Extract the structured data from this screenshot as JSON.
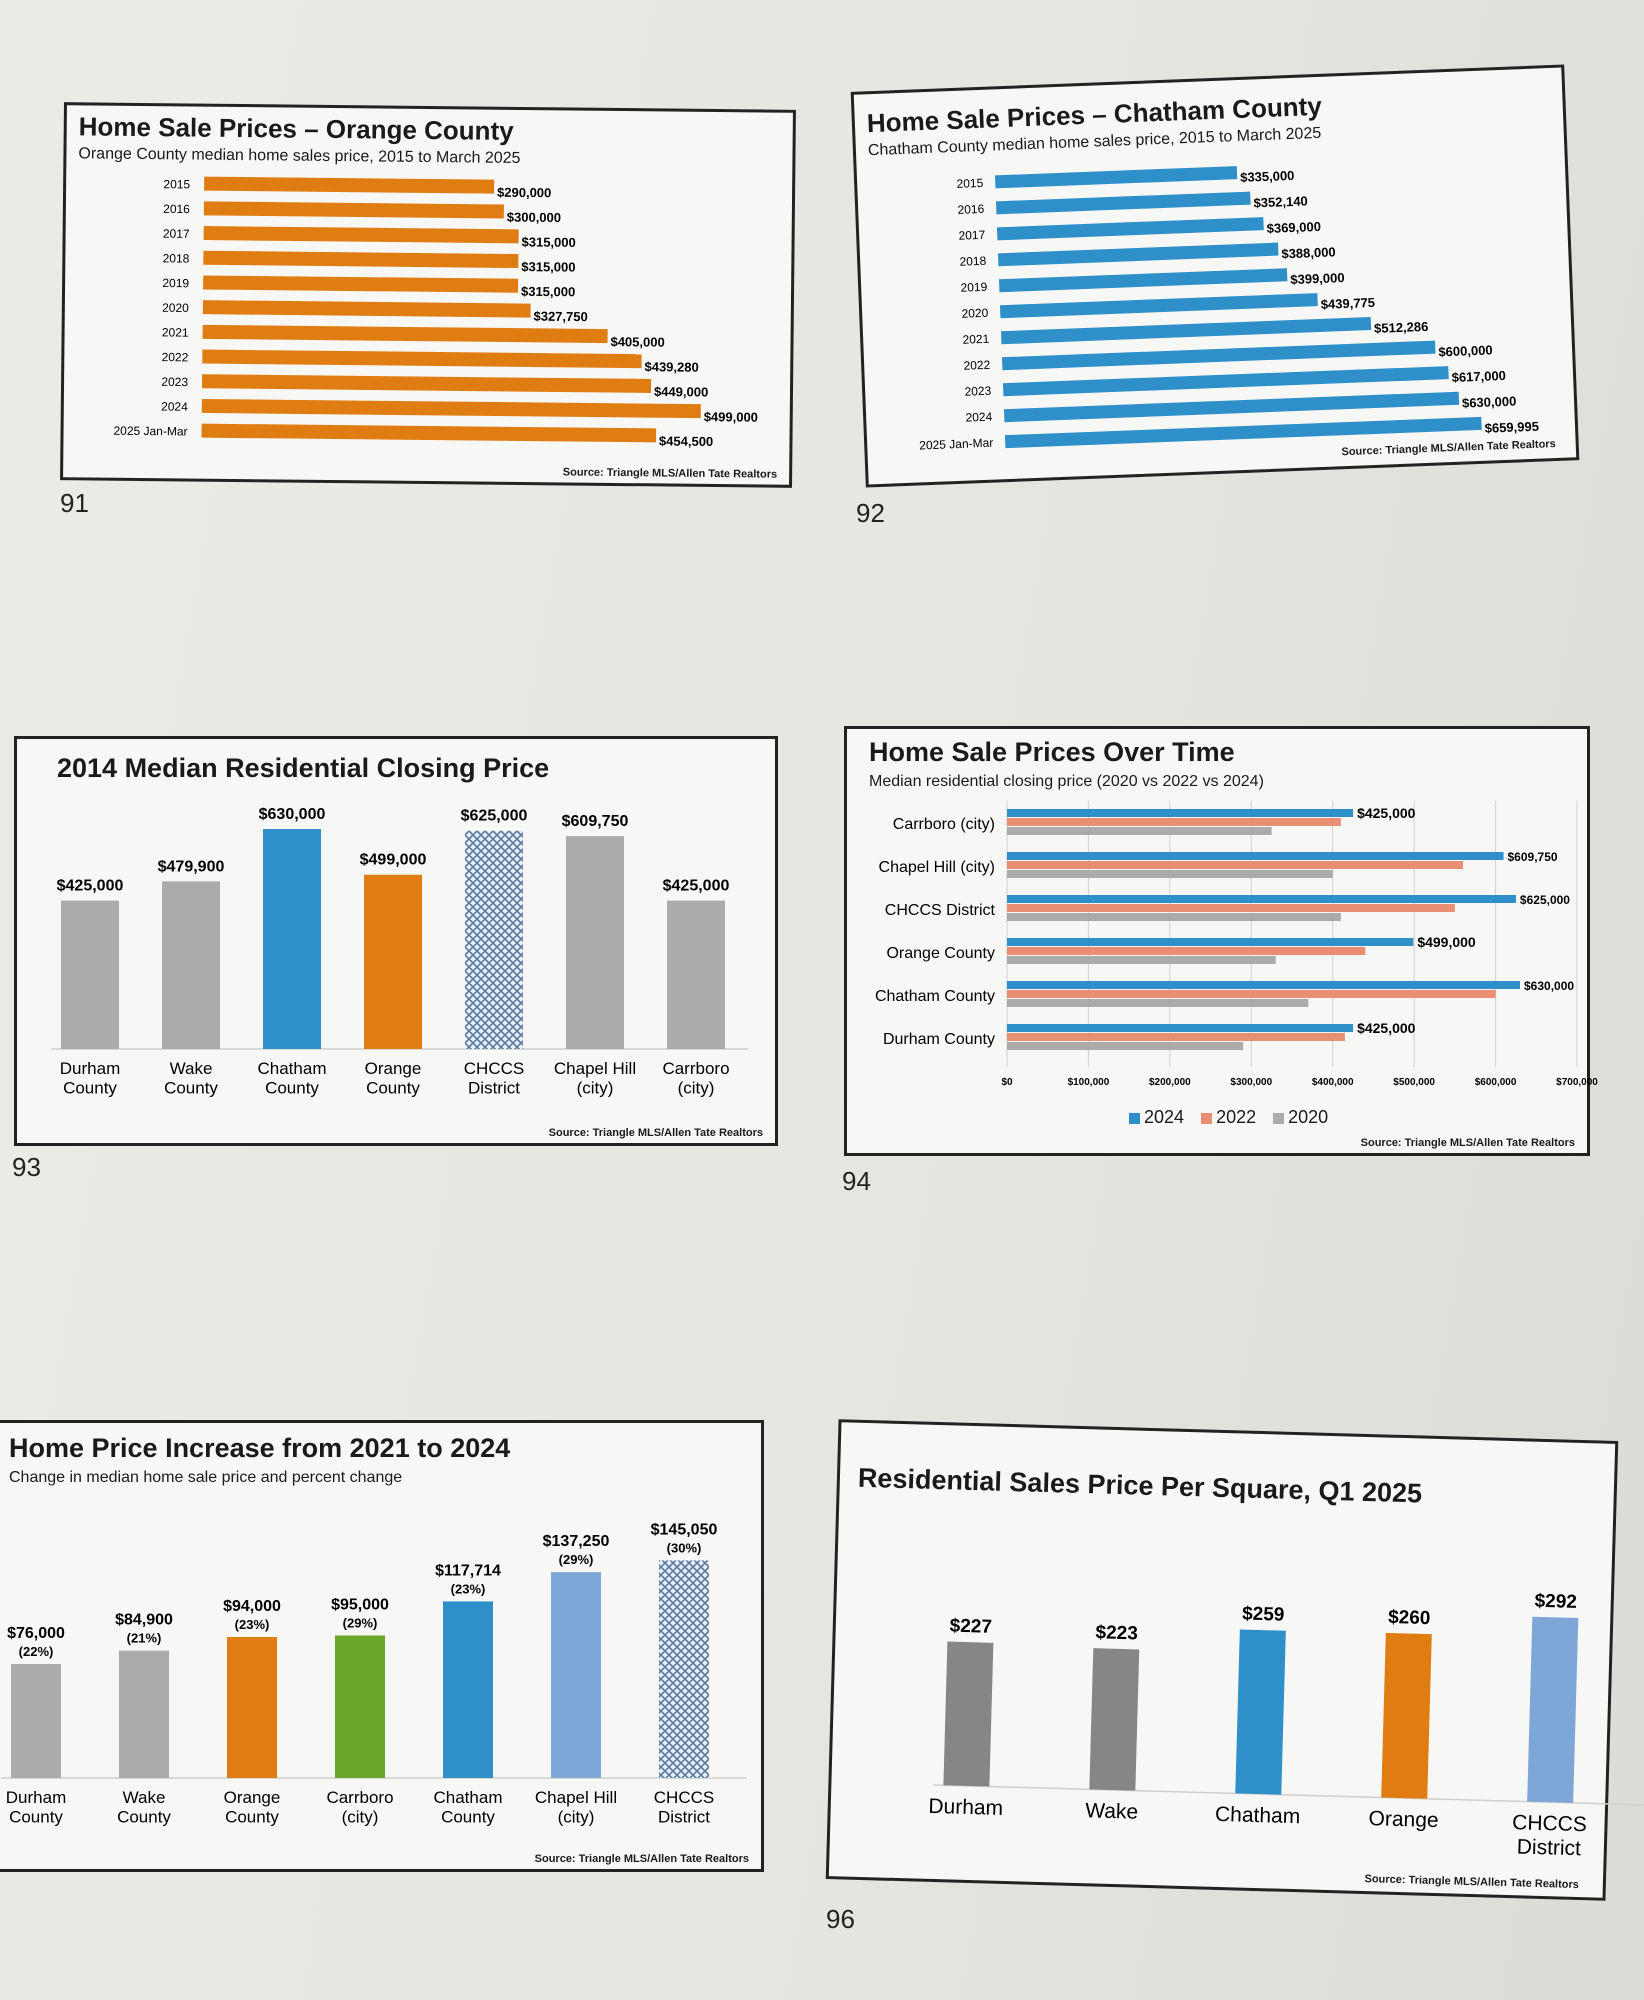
{
  "page_numbers": [
    "91",
    "92",
    "93",
    "94",
    "96"
  ],
  "colors": {
    "orange": "#e07d12",
    "blue": "#2e8fc9",
    "gray": "#ababab",
    "green": "#6aa82c",
    "lightblue": "#7ea7d8",
    "salmon": "#e98e72",
    "darkgray": "#868686"
  },
  "chart_data": [
    {
      "id": "orange_county",
      "type": "bar",
      "orientation": "horizontal",
      "title": "Home Sale Prices – Orange County",
      "subtitle": "Orange County median home sales price, 2015 to March 2025",
      "source": "Source: Triangle MLS/Allen Tate Realtors",
      "categories": [
        "2015",
        "2016",
        "2017",
        "2018",
        "2019",
        "2020",
        "2021",
        "2022",
        "2023",
        "2024",
        "2025 Jan-Mar"
      ],
      "values": [
        290000,
        300000,
        315000,
        315000,
        315000,
        327750,
        405000,
        439280,
        449000,
        499000,
        454500
      ],
      "labels": [
        "$290,000",
        "$300,000",
        "$315,000",
        "$315,000",
        "$315,000",
        "$327,750",
        "$405,000",
        "$439,280",
        "$449,000",
        "$499,000",
        "$454,500"
      ],
      "xlim": [
        0,
        600000
      ]
    },
    {
      "id": "chatham_county",
      "type": "bar",
      "orientation": "horizontal",
      "title": "Home Sale Prices – Chatham County",
      "subtitle": "Chatham County median home sales price, 2015 to March 2025",
      "source": "Source: Triangle MLS/Allen Tate Realtors",
      "categories": [
        "2015",
        "2016",
        "2017",
        "2018",
        "2019",
        "2020",
        "2021",
        "2022",
        "2023",
        "2024",
        "2025 Jan-Mar"
      ],
      "values": [
        335000,
        352140,
        369000,
        388000,
        399000,
        439775,
        512286,
        600000,
        617000,
        630000,
        659995
      ],
      "labels": [
        "$335,000",
        "$352,140",
        "$369,000",
        "$388,000",
        "$399,000",
        "$439,775",
        "$512,286",
        "$600,000",
        "$617,000",
        "$630,000",
        "$659,995"
      ],
      "xlim": [
        0,
        720000
      ]
    },
    {
      "id": "median_closing_2014",
      "type": "bar",
      "title": "2014 Median Residential Closing Price",
      "source": "Source: Triangle MLS/Allen Tate Realtors",
      "categories": [
        "Durham County",
        "Wake County",
        "Chatham County",
        "Orange County",
        "CHCCS District",
        "Chapel Hill (city)",
        "Carrboro (city)"
      ],
      "values": [
        425000,
        479900,
        630000,
        499000,
        625000,
        609750,
        425000
      ],
      "labels": [
        "$425,000",
        "$479,900",
        "$630,000",
        "$499,000",
        "$625,000",
        "$609,750",
        "$425,000"
      ],
      "bar_colors": [
        "gray",
        "gray",
        "blue",
        "orange",
        "pattern",
        "gray",
        "gray"
      ],
      "ylim": [
        0,
        630000
      ]
    },
    {
      "id": "prices_over_time",
      "type": "bar",
      "orientation": "horizontal",
      "title": "Home Sale Prices Over Time",
      "subtitle": "Median residential closing price (2020 vs 2022 vs 2024)",
      "source": "Source: Triangle MLS/Allen Tate Realtors",
      "categories": [
        "Carrboro (city)",
        "Chapel Hill (city)",
        "CHCCS District",
        "Orange County",
        "Chatham County",
        "Durham County"
      ],
      "series": [
        {
          "name": "2024",
          "values": [
            425000,
            609750,
            625000,
            499000,
            630000,
            425000
          ],
          "labels": [
            "$425,000",
            "$609,750",
            "$625,000",
            "$499,000",
            "$630,000",
            "$425,000"
          ]
        },
        {
          "name": "2022",
          "values": [
            410000,
            560000,
            550000,
            440000,
            600000,
            415000
          ]
        },
        {
          "name": "2020",
          "values": [
            325000,
            400000,
            410000,
            330000,
            370000,
            290000
          ]
        }
      ],
      "xticks": [
        "$0",
        "$100,000",
        "$200,000",
        "$300,000",
        "$400,000",
        "$500,000",
        "$600,000",
        "$700,000"
      ],
      "xlim": [
        0,
        700000
      ],
      "grid": true,
      "legend": "bottom"
    },
    {
      "id": "increase_2021_2024",
      "type": "bar",
      "title": "Home Price Increase from 2021 to 2024",
      "subtitle": "Change in median home sale price and percent change",
      "source": "Source: Triangle MLS/Allen Tate Realtors",
      "categories": [
        "Durham County",
        "Wake County",
        "Orange County",
        "Carrboro (city)",
        "Chatham County",
        "Chapel Hill (city)",
        "CHCCS District"
      ],
      "values": [
        76000,
        84900,
        94000,
        95000,
        117714,
        137250,
        145050
      ],
      "labels": [
        "$76,000",
        "$84,900",
        "$94,000",
        "$95,000",
        "$117,714",
        "$137,250",
        "$145,050"
      ],
      "percent_labels": [
        "(22%)",
        "(21%)",
        "(23%)",
        "(29%)",
        "(23%)",
        "(29%)",
        "(30%)"
      ],
      "bar_colors": [
        "gray",
        "gray",
        "orange",
        "green",
        "blue",
        "lightblue",
        "pattern"
      ],
      "ylim": [
        0,
        150000
      ]
    },
    {
      "id": "price_per_square",
      "type": "bar",
      "title": "Residential Sales Price Per Square, Q1 2025",
      "source": "Source: Triangle MLS/Allen Tate Realtors",
      "categories": [
        "Durham",
        "Wake",
        "Chatham",
        "Orange",
        "CHCCS District"
      ],
      "values": [
        227,
        223,
        259,
        260,
        292
      ],
      "labels": [
        "$227",
        "$223",
        "$259",
        "$260",
        "$292"
      ],
      "bar_colors": [
        "darkgray",
        "darkgray",
        "blue",
        "orange",
        "lightblue"
      ],
      "ylim": [
        0,
        300
      ]
    }
  ]
}
